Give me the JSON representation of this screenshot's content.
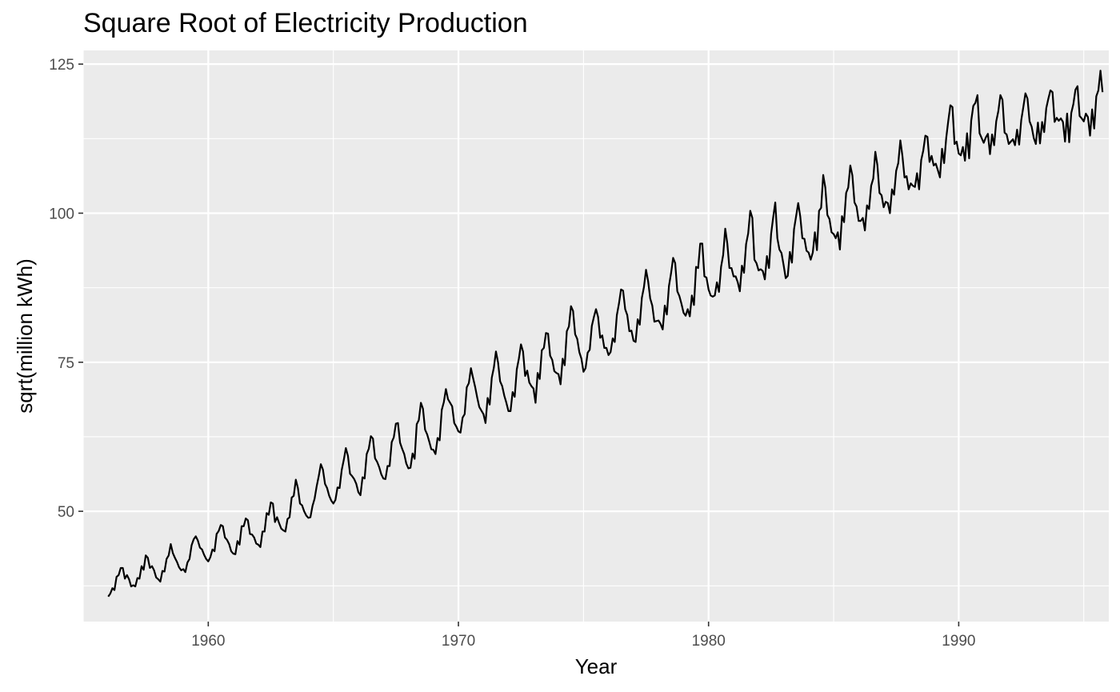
{
  "chart_data": {
    "type": "line",
    "title": "Square Root of Electricity Production",
    "xlabel": "Year",
    "ylabel": "sqrt(million kWh)",
    "xlim": [
      1955.0,
      1996.0
    ],
    "ylim": [
      31.5,
      127.3
    ],
    "x_ticks": [
      1960,
      1970,
      1980,
      1990
    ],
    "x_tick_labels": [
      "1960",
      "1970",
      "1980",
      "1990"
    ],
    "y_ticks": [
      50,
      75,
      100,
      125
    ],
    "y_tick_labels": [
      "50",
      "75",
      "100",
      "125"
    ],
    "grid": true,
    "legend": "none",
    "colors": {
      "panel": "#ebebeb",
      "grid": "#ffffff",
      "line": "#000000",
      "tick_label": "#4d4d4d"
    },
    "series": [
      {
        "start": 1956.0,
        "frequency": 12,
        "values": [
          35.7,
          36.2,
          37.1,
          36.8,
          39.0,
          39.3,
          40.5,
          40.5,
          38.7,
          39.3,
          38.6,
          37.4,
          37.6,
          37.4,
          38.8,
          38.7,
          40.8,
          40.2,
          42.6,
          42.2,
          40.5,
          40.8,
          40.1,
          38.9,
          38.6,
          38.2,
          40.0,
          39.9,
          42.0,
          42.6,
          44.5,
          43.0,
          42.2,
          41.5,
          40.6,
          40.1,
          40.3,
          39.8,
          41.4,
          42.0,
          44.3,
          45.3,
          45.8,
          45.1,
          43.9,
          43.6,
          42.7,
          42.0,
          41.6,
          42.3,
          43.6,
          43.3,
          46.2,
          46.7,
          47.7,
          47.5,
          45.6,
          45.2,
          44.5,
          43.3,
          42.9,
          42.8,
          45.0,
          44.4,
          47.5,
          47.5,
          48.8,
          48.5,
          46.2,
          46.1,
          45.6,
          44.6,
          44.4,
          44.0,
          46.6,
          46.6,
          49.7,
          49.4,
          51.5,
          51.3,
          48.2,
          49.0,
          48.0,
          47.1,
          46.8,
          46.6,
          48.7,
          49.0,
          52.3,
          52.6,
          55.3,
          53.9,
          51.3,
          51.0,
          50.0,
          49.3,
          48.9,
          49.0,
          50.9,
          52.1,
          54.2,
          55.9,
          57.9,
          57.0,
          54.6,
          53.9,
          52.6,
          51.8,
          51.3,
          51.9,
          54.0,
          53.9,
          56.9,
          58.6,
          60.6,
          59.3,
          56.3,
          55.9,
          55.4,
          54.6,
          53.2,
          52.7,
          55.7,
          55.5,
          59.6,
          60.5,
          62.6,
          62.2,
          58.9,
          58.3,
          57.4,
          56.2,
          55.5,
          55.4,
          57.6,
          57.6,
          61.6,
          62.4,
          64.7,
          64.8,
          61.5,
          60.5,
          59.6,
          58.0,
          57.2,
          57.3,
          59.7,
          58.8,
          64.6,
          65.3,
          68.2,
          67.2,
          63.7,
          62.9,
          61.7,
          60.4,
          60.3,
          59.6,
          62.3,
          61.9,
          67.0,
          68.3,
          70.5,
          68.8,
          68.2,
          67.6,
          64.8,
          64.2,
          63.4,
          63.2,
          65.7,
          66.3,
          70.8,
          71.5,
          74.0,
          72.4,
          70.9,
          69.1,
          67.5,
          66.9,
          66.3,
          64.8,
          69.0,
          67.9,
          72.4,
          74.1,
          76.8,
          75.0,
          71.8,
          71.0,
          69.4,
          68.2,
          66.8,
          66.8,
          70.0,
          69.2,
          73.8,
          75.6,
          78.0,
          76.8,
          72.7,
          73.6,
          71.6,
          71.0,
          70.6,
          68.2,
          73.2,
          72.2,
          77.0,
          77.4,
          79.9,
          79.8,
          76.1,
          75.4,
          73.5,
          73.2,
          73.0,
          71.3,
          75.6,
          74.5,
          80.2,
          81.0,
          84.4,
          83.6,
          79.7,
          78.9,
          76.7,
          75.6,
          73.4,
          74.0,
          76.6,
          77.1,
          81.1,
          82.6,
          83.9,
          82.6,
          79.1,
          79.5,
          77.4,
          77.4,
          76.2,
          76.7,
          79.0,
          78.4,
          82.9,
          84.8,
          87.2,
          87.0,
          83.9,
          82.9,
          80.2,
          80.3,
          78.6,
          78.4,
          82.2,
          81.3,
          85.8,
          87.6,
          90.5,
          88.6,
          85.7,
          84.5,
          81.8,
          81.9,
          82.0,
          81.4,
          80.5,
          84.5,
          83.0,
          87.8,
          89.9,
          92.5,
          91.6,
          86.9,
          86.1,
          84.8,
          83.3,
          82.8,
          83.9,
          82.7,
          86.2,
          84.6,
          91.0,
          90.8,
          94.9,
          94.9,
          89.4,
          89.2,
          87.2,
          86.2,
          86.0,
          86.2,
          88.4,
          86.8,
          91.0,
          93.0,
          97.4,
          94.9,
          90.8,
          90.8,
          89.4,
          89.4,
          88.4,
          86.9,
          91.2,
          90.0,
          94.8,
          96.6,
          100.4,
          99.2,
          92.2,
          91.6,
          90.4,
          90.6,
          90.3,
          88.9,
          92.8,
          90.8,
          96.5,
          99.3,
          101.8,
          95.8,
          93.9,
          93.3,
          91.3,
          89.1,
          89.5,
          93.5,
          91.7,
          97.3,
          99.5,
          101.7,
          99.4,
          95.8,
          95.7,
          93.7,
          93.4,
          92.2,
          93.4,
          96.8,
          93.8,
          100.4,
          100.9,
          106.4,
          104.3,
          99.7,
          99.0,
          96.8,
          96.5,
          95.8,
          96.8,
          93.9,
          99.5,
          98.5,
          103.4,
          104.3,
          108.0,
          106.3,
          101.8,
          101.1,
          98.7,
          98.7,
          99.2,
          97.1,
          101.3,
          100.7,
          104.6,
          105.8,
          110.3,
          108.0,
          103.4,
          103.0,
          101.0,
          101.9,
          101.7,
          100.0,
          104.0,
          103.1,
          107.1,
          108.4,
          112.2,
          109.6,
          106.0,
          106.2,
          104.0,
          105.0,
          104.6,
          104.4,
          106.7,
          104.0,
          108.9,
          110.5,
          113.0,
          112.8,
          108.6,
          109.6,
          108.0,
          108.3,
          107.2,
          106.0,
          110.8,
          108.4,
          112.6,
          115.5,
          118.1,
          117.8,
          111.6,
          112.0,
          110.0,
          109.7,
          111.1,
          108.8,
          113.4,
          109.2,
          115.5,
          118.0,
          118.5,
          119.8,
          113.4,
          112.6,
          111.8,
          112.7,
          113.3,
          109.9,
          113.2,
          111.4,
          115.4,
          117.1,
          119.8,
          119.0,
          113.5,
          113.2,
          111.6,
          112.0,
          112.4,
          111.4,
          114.0,
          111.5,
          115.6,
          117.8,
          120.1,
          119.2,
          115.4,
          114.5,
          112.6,
          111.6,
          115.2,
          111.7,
          115.3,
          113.6,
          117.6,
          119.2,
          120.6,
          120.3,
          115.3,
          116.0,
          115.5,
          115.9,
          115.3,
          112.0,
          116.7,
          111.9,
          116.8,
          118.3,
          120.7,
          121.3,
          116.3,
          115.9,
          115.4,
          116.7,
          116.1,
          113.0,
          117.4,
          114.2,
          119.6,
          120.6,
          123.9,
          120.3
        ]
      }
    ]
  }
}
